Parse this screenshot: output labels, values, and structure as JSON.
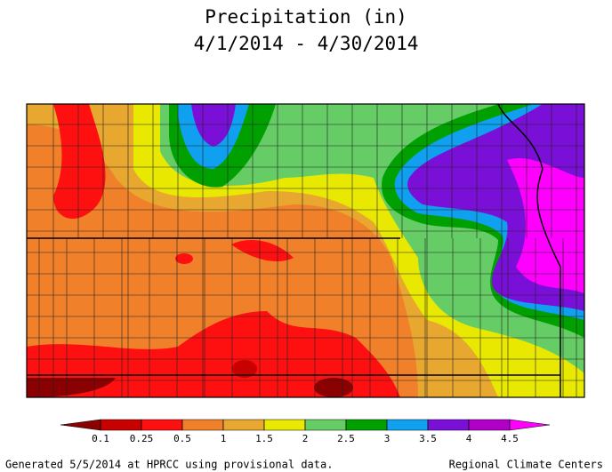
{
  "header": {
    "title": "Precipitation (in)",
    "subtitle": "4/1/2014 - 4/30/2014"
  },
  "legend": {
    "ticks": [
      0.1,
      0.25,
      0.5,
      1,
      1.5,
      2,
      2.5,
      3,
      3.5,
      4,
      4.5
    ],
    "colors": [
      "#8b0000",
      "#c80000",
      "#ff1010",
      "#f0802a",
      "#e8a830",
      "#e8e800",
      "#66cc66",
      "#00a000",
      "#10a0f0",
      "#7a10d8",
      "#b000c8",
      "#ff00ff"
    ]
  },
  "footer": {
    "left": "Generated 5/5/2014 at HPRCC using provisional data.",
    "right": "Regional Climate Centers"
  }
}
